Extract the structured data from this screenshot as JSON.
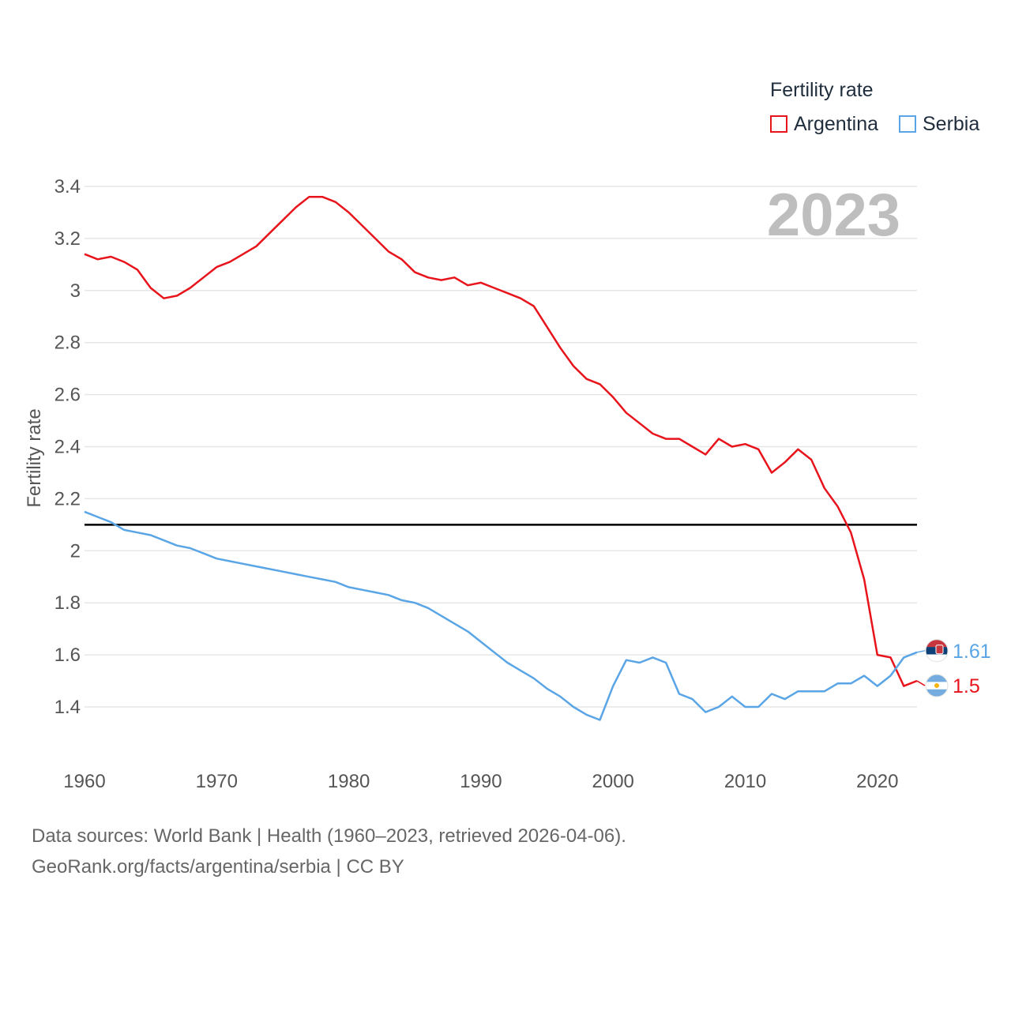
{
  "legend": {
    "title": "Fertility rate",
    "items": [
      {
        "label": "Argentina",
        "color": "#e8141c"
      },
      {
        "label": "Serbia",
        "color": "#5aa5e6"
      }
    ]
  },
  "footer": {
    "line1": "Data sources: World Bank | Health (1960–2023, retrieved 2026-04-06).",
    "line2": "GeoRank.org/facts/argentina/serbia | CC BY"
  },
  "chart_data": {
    "type": "line",
    "title": "",
    "year_label": "2023",
    "ylabel": "Fertility rate",
    "xlabel": "",
    "xlim": [
      1960,
      2023
    ],
    "ylim": [
      1.25,
      3.45
    ],
    "x_ticks": [
      1960,
      1970,
      1980,
      1990,
      2000,
      2010,
      2020
    ],
    "y_ticks": [
      1.4,
      1.6,
      1.8,
      2,
      2.2,
      2.4,
      2.6,
      2.8,
      3,
      3.2,
      3.4
    ],
    "reference_line": {
      "value": 2.1,
      "color": "#000000"
    },
    "x": [
      1960,
      1961,
      1962,
      1963,
      1964,
      1965,
      1966,
      1967,
      1968,
      1969,
      1970,
      1971,
      1972,
      1973,
      1974,
      1975,
      1976,
      1977,
      1978,
      1979,
      1980,
      1981,
      1982,
      1983,
      1984,
      1985,
      1986,
      1987,
      1988,
      1989,
      1990,
      1991,
      1992,
      1993,
      1994,
      1995,
      1996,
      1997,
      1998,
      1999,
      2000,
      2001,
      2002,
      2003,
      2004,
      2005,
      2006,
      2007,
      2008,
      2009,
      2010,
      2011,
      2012,
      2013,
      2014,
      2015,
      2016,
      2017,
      2018,
      2019,
      2020,
      2021,
      2022,
      2023
    ],
    "series": [
      {
        "name": "Argentina",
        "color": "#e8141c",
        "end_label": "1.5",
        "flag": "argentina-flag-icon",
        "values": [
          3.14,
          3.12,
          3.13,
          3.11,
          3.08,
          3.01,
          2.97,
          2.98,
          3.01,
          3.05,
          3.09,
          3.11,
          3.14,
          3.17,
          3.22,
          3.27,
          3.32,
          3.36,
          3.36,
          3.34,
          3.3,
          3.25,
          3.2,
          3.15,
          3.12,
          3.07,
          3.05,
          3.04,
          3.05,
          3.02,
          3.03,
          3.01,
          2.99,
          2.97,
          2.94,
          2.86,
          2.78,
          2.71,
          2.66,
          2.64,
          2.59,
          2.53,
          2.49,
          2.45,
          2.43,
          2.43,
          2.4,
          2.37,
          2.43,
          2.4,
          2.41,
          2.39,
          2.3,
          2.34,
          2.39,
          2.35,
          2.24,
          2.17,
          2.07,
          1.89,
          1.6,
          1.59,
          1.48,
          1.5
        ]
      },
      {
        "name": "Serbia",
        "color": "#5aa5e6",
        "end_label": "1.61",
        "flag": "serbia-flag-icon",
        "values": [
          2.15,
          2.13,
          2.11,
          2.08,
          2.07,
          2.06,
          2.04,
          2.02,
          2.01,
          1.99,
          1.97,
          1.96,
          1.95,
          1.94,
          1.93,
          1.92,
          1.91,
          1.9,
          1.89,
          1.88,
          1.86,
          1.85,
          1.84,
          1.83,
          1.81,
          1.8,
          1.78,
          1.75,
          1.72,
          1.69,
          1.65,
          1.61,
          1.57,
          1.54,
          1.51,
          1.47,
          1.44,
          1.4,
          1.37,
          1.35,
          1.48,
          1.58,
          1.57,
          1.59,
          1.57,
          1.45,
          1.43,
          1.38,
          1.4,
          1.44,
          1.4,
          1.4,
          1.45,
          1.43,
          1.46,
          1.46,
          1.46,
          1.49,
          1.49,
          1.52,
          1.48,
          1.52,
          1.59,
          1.61
        ]
      }
    ]
  }
}
